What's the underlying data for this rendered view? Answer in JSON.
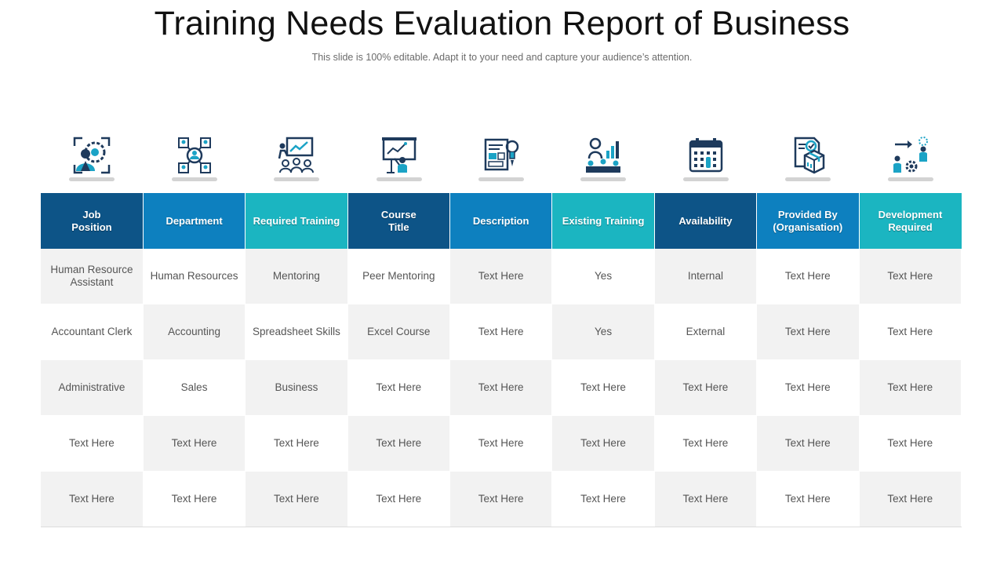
{
  "page": {
    "title": "Training Needs Evaluation Report of Business",
    "subtitle": "This slide is 100% editable. Adapt it to your need and capture your audience’s attention."
  },
  "colors": {
    "header_dark": "#0d5487",
    "header_mid": "#0d80bf",
    "header_teal": "#1bb5c1",
    "icon_dark": "#1e3a5c",
    "icon_accent": "#1ba3c6",
    "row_shade": "#f2f2f2"
  },
  "icons": [
    "gear-person-icon",
    "network-people-icon",
    "presentation-audience-icon",
    "presenter-board-icon",
    "document-idea-icon",
    "team-growth-chart-icon",
    "calendar-icon",
    "package-certificate-icon",
    "career-path-icon"
  ],
  "table": {
    "headers": [
      "Job\nPosition",
      "Department",
      "Required Training",
      "Course\nTitle",
      "Description",
      "Existing Training",
      "Availability",
      "Provided By\n(Organisation)",
      "Development\nRequired"
    ],
    "rows": [
      [
        "Human Resource\nAssistant",
        "Human Resources",
        "Mentoring",
        "Peer Mentoring",
        "Text Here",
        "Yes",
        "Internal",
        "Text Here",
        "Text Here"
      ],
      [
        "Accountant Clerk",
        "Accounting",
        "Spreadsheet  Skills",
        "Excel Course",
        "Text Here",
        "Yes",
        "External",
        "Text Here",
        "Text Here"
      ],
      [
        "Administrative",
        "Sales",
        "Business",
        "Text Here",
        "Text Here",
        "Text Here",
        "Text Here",
        "Text Here",
        "Text Here"
      ],
      [
        "Text Here",
        "Text Here",
        "Text Here",
        "Text Here",
        "Text Here",
        "Text Here",
        "Text Here",
        "Text Here",
        "Text Here"
      ],
      [
        "Text Here",
        "Text Here",
        "Text Here",
        "Text Here",
        "Text Here",
        "Text Here",
        "Text Here",
        "Text Here",
        "Text Here"
      ]
    ]
  }
}
